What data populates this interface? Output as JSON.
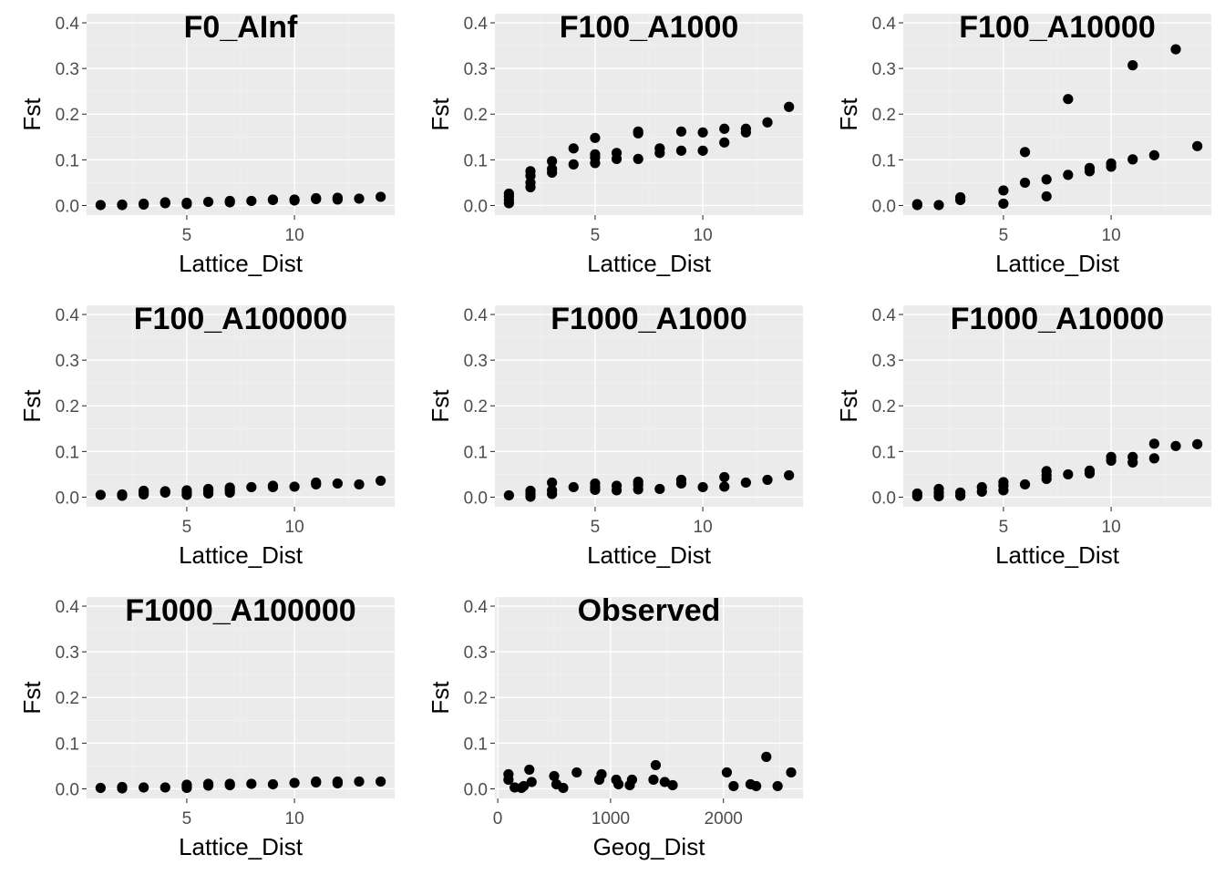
{
  "chart_data": [
    {
      "type": "scatter",
      "title": "F0_AInf",
      "xlabel": "Lattice_Dist",
      "ylabel": "Fst",
      "xlim": [
        0.35,
        14.65
      ],
      "ylim": [
        -0.021,
        0.42
      ],
      "xticks": [
        5,
        10
      ],
      "yticks": [
        0.0,
        0.1,
        0.2,
        0.3,
        0.4
      ],
      "ytick_labels": [
        "0.0",
        "0.1",
        "0.2",
        "0.3",
        "0.4"
      ],
      "grid": true,
      "points": [
        [
          1,
          0.001
        ],
        [
          2,
          0.001
        ],
        [
          2,
          0.002
        ],
        [
          3,
          0.002
        ],
        [
          3,
          0.004
        ],
        [
          4,
          0.005
        ],
        [
          4,
          0.007
        ],
        [
          5,
          0.003
        ],
        [
          5,
          0.006
        ],
        [
          6,
          0.008
        ],
        [
          7,
          0.007
        ],
        [
          7,
          0.01
        ],
        [
          8,
          0.01
        ],
        [
          9,
          0.012
        ],
        [
          9,
          0.013
        ],
        [
          10,
          0.011
        ],
        [
          10,
          0.013
        ],
        [
          11,
          0.014
        ],
        [
          11,
          0.016
        ],
        [
          12,
          0.013
        ],
        [
          12,
          0.017
        ],
        [
          13,
          0.015
        ],
        [
          14,
          0.019
        ]
      ]
    },
    {
      "type": "scatter",
      "title": "F100_A1000",
      "xlabel": "Lattice_Dist",
      "ylabel": "Fst",
      "xlim": [
        0.35,
        14.65
      ],
      "ylim": [
        -0.021,
        0.42
      ],
      "xticks": [
        5,
        10
      ],
      "yticks": [
        0.0,
        0.1,
        0.2,
        0.3,
        0.4
      ],
      "ytick_labels": [
        "0.0",
        "0.1",
        "0.2",
        "0.3",
        "0.4"
      ],
      "grid": true,
      "points": [
        [
          1,
          0.005
        ],
        [
          1,
          0.012
        ],
        [
          1,
          0.02
        ],
        [
          1,
          0.026
        ],
        [
          2,
          0.04
        ],
        [
          2,
          0.05
        ],
        [
          2,
          0.065
        ],
        [
          2,
          0.075
        ],
        [
          3,
          0.072
        ],
        [
          3,
          0.08
        ],
        [
          3,
          0.097
        ],
        [
          4,
          0.09
        ],
        [
          4,
          0.125
        ],
        [
          5,
          0.093
        ],
        [
          5,
          0.105
        ],
        [
          5,
          0.112
        ],
        [
          5,
          0.148
        ],
        [
          6,
          0.102
        ],
        [
          6,
          0.115
        ],
        [
          7,
          0.102
        ],
        [
          7,
          0.158
        ],
        [
          7,
          0.162
        ],
        [
          8,
          0.115
        ],
        [
          8,
          0.125
        ],
        [
          9,
          0.12
        ],
        [
          9,
          0.162
        ],
        [
          10,
          0.12
        ],
        [
          10,
          0.16
        ],
        [
          11,
          0.138
        ],
        [
          11,
          0.168
        ],
        [
          12,
          0.16
        ],
        [
          12,
          0.168
        ],
        [
          13,
          0.182
        ],
        [
          14,
          0.216
        ]
      ]
    },
    {
      "type": "scatter",
      "title": "F100_A10000",
      "xlabel": "Lattice_Dist",
      "ylabel": "Fst",
      "xlim": [
        0.35,
        14.65
      ],
      "ylim": [
        -0.021,
        0.42
      ],
      "xticks": [
        5,
        10
      ],
      "yticks": [
        0.0,
        0.1,
        0.2,
        0.3,
        0.4
      ],
      "ytick_labels": [
        "0.0",
        "0.1",
        "0.2",
        "0.3",
        "0.4"
      ],
      "grid": true,
      "points": [
        [
          1,
          0.001
        ],
        [
          1,
          0.003
        ],
        [
          2,
          0.001
        ],
        [
          3,
          0.012
        ],
        [
          3,
          0.018
        ],
        [
          5,
          0.004
        ],
        [
          5,
          0.033
        ],
        [
          6,
          0.05
        ],
        [
          6,
          0.117
        ],
        [
          7,
          0.02
        ],
        [
          7,
          0.057
        ],
        [
          8,
          0.067
        ],
        [
          8,
          0.233
        ],
        [
          9,
          0.075
        ],
        [
          9,
          0.082
        ],
        [
          10,
          0.085
        ],
        [
          10,
          0.092
        ],
        [
          11,
          0.101
        ],
        [
          11,
          0.307
        ],
        [
          12,
          0.11
        ],
        [
          13,
          0.342
        ],
        [
          14,
          0.13
        ]
      ]
    },
    {
      "type": "scatter",
      "title": "F100_A100000",
      "xlabel": "Lattice_Dist",
      "ylabel": "Fst",
      "xlim": [
        0.35,
        14.65
      ],
      "ylim": [
        -0.021,
        0.42
      ],
      "xticks": [
        5,
        10
      ],
      "yticks": [
        0.0,
        0.1,
        0.2,
        0.3,
        0.4
      ],
      "ytick_labels": [
        "0.0",
        "0.1",
        "0.2",
        "0.3",
        "0.4"
      ],
      "grid": true,
      "points": [
        [
          1,
          0.005
        ],
        [
          2,
          0.003
        ],
        [
          2,
          0.006
        ],
        [
          3,
          0.006
        ],
        [
          3,
          0.01
        ],
        [
          3,
          0.014
        ],
        [
          4,
          0.01
        ],
        [
          4,
          0.013
        ],
        [
          5,
          0.005
        ],
        [
          5,
          0.01
        ],
        [
          5,
          0.015
        ],
        [
          6,
          0.008
        ],
        [
          6,
          0.013
        ],
        [
          6,
          0.018
        ],
        [
          7,
          0.01
        ],
        [
          7,
          0.016
        ],
        [
          7,
          0.021
        ],
        [
          8,
          0.022
        ],
        [
          9,
          0.022
        ],
        [
          9,
          0.025
        ],
        [
          10,
          0.023
        ],
        [
          11,
          0.028
        ],
        [
          11,
          0.032
        ],
        [
          12,
          0.03
        ],
        [
          13,
          0.028
        ],
        [
          14,
          0.036
        ]
      ]
    },
    {
      "type": "scatter",
      "title": "F1000_A1000",
      "xlabel": "Lattice_Dist",
      "ylabel": "Fst",
      "xlim": [
        0.35,
        14.65
      ],
      "ylim": [
        -0.021,
        0.42
      ],
      "xticks": [
        5,
        10
      ],
      "yticks": [
        0.0,
        0.1,
        0.2,
        0.3,
        0.4
      ],
      "ytick_labels": [
        "0.0",
        "0.1",
        "0.2",
        "0.3",
        "0.4"
      ],
      "grid": true,
      "points": [
        [
          1,
          0.004
        ],
        [
          2,
          0.001
        ],
        [
          2,
          0.008
        ],
        [
          2,
          0.014
        ],
        [
          3,
          0.007
        ],
        [
          3,
          0.015
        ],
        [
          3,
          0.032
        ],
        [
          4,
          0.022
        ],
        [
          5,
          0.016
        ],
        [
          5,
          0.022
        ],
        [
          5,
          0.03
        ],
        [
          6,
          0.015
        ],
        [
          6,
          0.025
        ],
        [
          7,
          0.017
        ],
        [
          7,
          0.027
        ],
        [
          7,
          0.034
        ],
        [
          8,
          0.018
        ],
        [
          9,
          0.03
        ],
        [
          9,
          0.038
        ],
        [
          10,
          0.022
        ],
        [
          11,
          0.023
        ],
        [
          11,
          0.044
        ],
        [
          12,
          0.032
        ],
        [
          13,
          0.038
        ],
        [
          14,
          0.048
        ]
      ]
    },
    {
      "type": "scatter",
      "title": "F1000_A10000",
      "xlabel": "Lattice_Dist",
      "ylabel": "Fst",
      "xlim": [
        0.35,
        14.65
      ],
      "ylim": [
        -0.021,
        0.42
      ],
      "xticks": [
        5,
        10
      ],
      "yticks": [
        0.0,
        0.1,
        0.2,
        0.3,
        0.4
      ],
      "ytick_labels": [
        "0.0",
        "0.1",
        "0.2",
        "0.3",
        "0.4"
      ],
      "grid": true,
      "points": [
        [
          1,
          0.002
        ],
        [
          1,
          0.008
        ],
        [
          2,
          0.002
        ],
        [
          2,
          0.01
        ],
        [
          2,
          0.018
        ],
        [
          3,
          0.003
        ],
        [
          3,
          0.01
        ],
        [
          4,
          0.012
        ],
        [
          4,
          0.022
        ],
        [
          5,
          0.015
        ],
        [
          5,
          0.025
        ],
        [
          5,
          0.033
        ],
        [
          6,
          0.028
        ],
        [
          7,
          0.04
        ],
        [
          7,
          0.048
        ],
        [
          7,
          0.057
        ],
        [
          8,
          0.05
        ],
        [
          9,
          0.052
        ],
        [
          9,
          0.058
        ],
        [
          10,
          0.08
        ],
        [
          10,
          0.088
        ],
        [
          11,
          0.076
        ],
        [
          11,
          0.088
        ],
        [
          12,
          0.085
        ],
        [
          12,
          0.117
        ],
        [
          13,
          0.112
        ],
        [
          14,
          0.116
        ]
      ]
    },
    {
      "type": "scatter",
      "title": "F1000_A100000",
      "xlabel": "Lattice_Dist",
      "ylabel": "Fst",
      "xlim": [
        0.35,
        14.65
      ],
      "ylim": [
        -0.021,
        0.42
      ],
      "xticks": [
        5,
        10
      ],
      "yticks": [
        0.0,
        0.1,
        0.2,
        0.3,
        0.4
      ],
      "ytick_labels": [
        "0.0",
        "0.1",
        "0.2",
        "0.3",
        "0.4"
      ],
      "grid": true,
      "points": [
        [
          1,
          0.002
        ],
        [
          2,
          0.001
        ],
        [
          2,
          0.004
        ],
        [
          3,
          0.003
        ],
        [
          4,
          0.003
        ],
        [
          5,
          0.002
        ],
        [
          5,
          0.006
        ],
        [
          5,
          0.009
        ],
        [
          6,
          0.007
        ],
        [
          6,
          0.011
        ],
        [
          7,
          0.008
        ],
        [
          7,
          0.011
        ],
        [
          8,
          0.011
        ],
        [
          9,
          0.01
        ],
        [
          10,
          0.013
        ],
        [
          11,
          0.014
        ],
        [
          11,
          0.016
        ],
        [
          12,
          0.012
        ],
        [
          12,
          0.016
        ],
        [
          13,
          0.016
        ],
        [
          14,
          0.016
        ]
      ]
    },
    {
      "type": "scatter",
      "title": "Observed",
      "xlabel": "Geog_Dist",
      "ylabel": "Fst",
      "xlim": [
        -25,
        2705
      ],
      "ylim": [
        -0.021,
        0.42
      ],
      "xticks": [
        0,
        1000,
        2000
      ],
      "yticks": [
        0.0,
        0.1,
        0.2,
        0.3,
        0.4
      ],
      "ytick_labels": [
        "0.0",
        "0.1",
        "0.2",
        "0.3",
        "0.4"
      ],
      "grid": true,
      "points": [
        [
          95,
          0.02
        ],
        [
          95,
          0.032
        ],
        [
          150,
          0.003
        ],
        [
          210,
          0.002
        ],
        [
          230,
          0.006
        ],
        [
          280,
          0.042
        ],
        [
          300,
          0.015
        ],
        [
          500,
          0.028
        ],
        [
          520,
          0.01
        ],
        [
          580,
          0.002
        ],
        [
          700,
          0.036
        ],
        [
          900,
          0.02
        ],
        [
          920,
          0.032
        ],
        [
          1050,
          0.02
        ],
        [
          1070,
          0.01
        ],
        [
          1170,
          0.008
        ],
        [
          1190,
          0.02
        ],
        [
          1380,
          0.02
        ],
        [
          1400,
          0.052
        ],
        [
          1480,
          0.015
        ],
        [
          1550,
          0.008
        ],
        [
          2030,
          0.036
        ],
        [
          2090,
          0.006
        ],
        [
          2240,
          0.01
        ],
        [
          2290,
          0.006
        ],
        [
          2380,
          0.07
        ],
        [
          2480,
          0.006
        ],
        [
          2600,
          0.036
        ]
      ]
    }
  ]
}
